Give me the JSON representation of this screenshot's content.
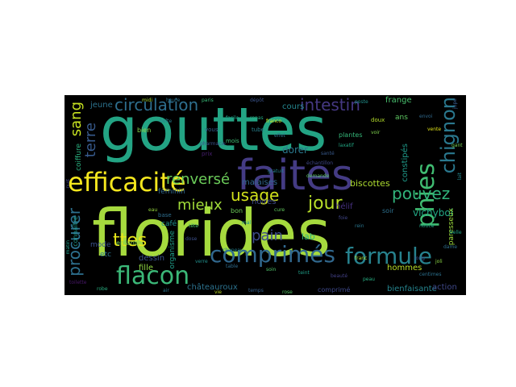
{
  "cloud": {
    "background": "#000000",
    "words": [
      {
        "text": "florides",
        "color": "#a6da3e"
      },
      {
        "text": "gouttes",
        "color": "#23a484"
      },
      {
        "text": "faites",
        "color": "#443b84"
      },
      {
        "text": "efficacité",
        "color": "#f4e61e"
      },
      {
        "text": "comprimés",
        "color": "#31688e"
      },
      {
        "text": "formule",
        "color": "#27828e"
      },
      {
        "text": "flacon",
        "color": "#3bb878"
      },
      {
        "text": "circulation",
        "color": "#2e6e8e"
      },
      {
        "text": "intestin",
        "color": "#453882"
      },
      {
        "text": "phies",
        "color": "#40bd72"
      },
      {
        "text": "chignon",
        "color": "#2a788e"
      },
      {
        "text": "pouvez",
        "color": "#31b47b"
      },
      {
        "text": "usage",
        "color": "#d2e21b"
      },
      {
        "text": "jour",
        "color": "#b8de29"
      },
      {
        "text": "procurer",
        "color": "#2d708e"
      },
      {
        "text": "ttes",
        "color": "#e5e419"
      },
      {
        "text": "mieux",
        "color": "#a0da39"
      },
      {
        "text": "renversé",
        "color": "#6ccd5a"
      },
      {
        "text": "pain",
        "color": "#3e4c8a"
      },
      {
        "text": "sang",
        "color": "#c5e021"
      },
      {
        "text": "terre",
        "color": "#375a8c"
      },
      {
        "text": "vichybol",
        "color": "#22a785"
      },
      {
        "text": "lab",
        "color": "#35b779"
      },
      {
        "text": "dorer",
        "color": "#2a788e"
      },
      {
        "text": "cours",
        "color": "#24868e"
      },
      {
        "text": "frange",
        "color": "#48c16e"
      },
      {
        "text": "jeune",
        "color": "#2c728e"
      },
      {
        "text": "biscottes",
        "color": "#addc30"
      },
      {
        "text": "constipés",
        "color": "#1f9a8a"
      },
      {
        "text": "malaises",
        "color": "#31688e"
      },
      {
        "text": "noires",
        "color": "#3e4a89"
      },
      {
        "text": "hélif",
        "color": "#46307e"
      },
      {
        "text": "hommes",
        "color": "#bade28"
      },
      {
        "text": "bienfaisante",
        "color": "#25848e"
      },
      {
        "text": "action",
        "color": "#3f4889"
      },
      {
        "text": "châteauroux",
        "color": "#2c728e"
      },
      {
        "text": "dessin",
        "color": "#3b528b"
      },
      {
        "text": "fille",
        "color": "#90d743"
      },
      {
        "text": "café",
        "color": "#21918c"
      },
      {
        "text": "organisme",
        "color": "#1f9e89"
      },
      {
        "text": "bon",
        "color": "#6ece58"
      },
      {
        "text": "féminin",
        "color": "#31688e"
      },
      {
        "text": "mode",
        "color": "#3b528b"
      },
      {
        "text": "etc",
        "color": "#2a788e"
      },
      {
        "text": "enfant",
        "color": "#7ad151"
      },
      {
        "text": "connaître",
        "color": "#1e9b8a"
      },
      {
        "text": "coiffure",
        "color": "#2ab07f"
      },
      {
        "text": "ans",
        "color": "#5ec962"
      },
      {
        "text": "soir",
        "color": "#2d708e"
      },
      {
        "text": "paresseux",
        "color": "#9bd93c"
      },
      {
        "text": "plantes",
        "color": "#35b779"
      },
      {
        "text": "comprimé",
        "color": "#3e4989"
      },
      {
        "text": "bien",
        "color": "#86d549"
      },
      {
        "text": "base",
        "color": "#2e6e8e"
      },
      {
        "text": "vous",
        "color": "#355f8d"
      },
      {
        "text": "mois",
        "color": "#3fbc73"
      },
      {
        "text": "tube",
        "color": "#27808e"
      },
      {
        "text": "doux",
        "color": "#b5de2b"
      },
      {
        "text": "prix",
        "color": "#481f70"
      },
      {
        "text": "effet",
        "color": "#2c738e"
      },
      {
        "text": "santé",
        "color": "#38598c"
      },
      {
        "text": "laxatif",
        "color": "#22a884"
      },
      {
        "text": "voir",
        "color": "#7fd34e"
      },
      {
        "text": "facile",
        "color": "#1fa188"
      },
      {
        "text": "pharmacie",
        "color": "#3a548c"
      },
      {
        "text": "vente",
        "color": "#e2e418"
      },
      {
        "text": "boîte",
        "color": "#287c8e"
      },
      {
        "text": "repas",
        "color": "#25ac82"
      },
      {
        "text": "cure",
        "color": "#63cb5f"
      },
      {
        "text": "foie",
        "color": "#404688"
      },
      {
        "text": "rein",
        "color": "#2a768e"
      },
      {
        "text": "mal",
        "color": "#1f968b"
      },
      {
        "text": "tête",
        "color": "#4ac16d"
      },
      {
        "text": "dose",
        "color": "#3c4f8a"
      },
      {
        "text": "eau",
        "color": "#97d83f"
      },
      {
        "text": "verre",
        "color": "#21908d"
      },
      {
        "text": "table",
        "color": "#2f6c8e"
      },
      {
        "text": "soin",
        "color": "#50c46a"
      },
      {
        "text": "teint",
        "color": "#1f9f88"
      },
      {
        "text": "beauté",
        "color": "#424186"
      },
      {
        "text": "peau",
        "color": "#27ad81"
      },
      {
        "text": "air",
        "color": "#2b758e"
      },
      {
        "text": "vie",
        "color": "#c2df23"
      },
      {
        "text": "temps",
        "color": "#34608d"
      },
      {
        "text": "rose",
        "color": "#56c667"
      },
      {
        "text": "chapeau",
        "color": "#26828e"
      },
      {
        "text": "long",
        "color": "#3d4d8a"
      },
      {
        "text": "joli",
        "color": "#8bd646"
      },
      {
        "text": "belle",
        "color": "#1fa287"
      },
      {
        "text": "dame",
        "color": "#2e6f8e"
      },
      {
        "text": "toilette",
        "color": "#481769"
      },
      {
        "text": "robe",
        "color": "#28ae80"
      },
      {
        "text": "jupe",
        "color": "#375b8d"
      },
      {
        "text": "gant",
        "color": "#75d054"
      },
      {
        "text": "lait",
        "color": "#23888e"
      },
      {
        "text": "nuit",
        "color": "#404387"
      },
      {
        "text": "matin",
        "color": "#1e9c89"
      },
      {
        "text": "midi",
        "color": "#a8db34"
      },
      {
        "text": "heure",
        "color": "#2b748e"
      },
      {
        "text": "paris",
        "color": "#38b977"
      },
      {
        "text": "dépôt",
        "color": "#3a538b"
      },
      {
        "text": "franco",
        "color": "#d5e21a"
      },
      {
        "text": "poste",
        "color": "#21918c"
      },
      {
        "text": "envoi",
        "color": "#306a8e"
      },
      {
        "text": "demande",
        "color": "#5cc863"
      },
      {
        "text": "gratuit",
        "color": "#26818e"
      },
      {
        "text": "échantillon",
        "color": "#3f4788"
      },
      {
        "text": "notice",
        "color": "#20a386"
      },
      {
        "text": "franc",
        "color": "#b0dd2f"
      },
      {
        "text": "centimes",
        "color": "#2c718e"
      }
    ]
  }
}
